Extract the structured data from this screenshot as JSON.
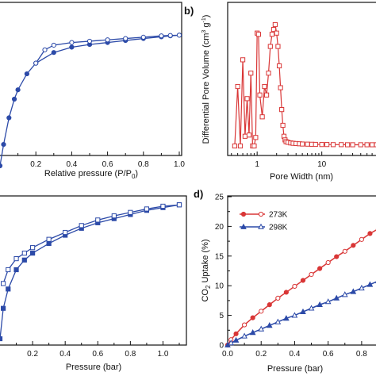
{
  "chart_data": [
    {
      "panel": "a",
      "type": "line",
      "xlabel": "Relative pressure (P/P0)",
      "xlabel_main": "Relative pressure (P/P",
      "xlabel_sub": "0",
      "xlabel_tail": ")",
      "xlim": [
        0.0,
        1.0
      ],
      "xticks": [
        "0.2",
        "0.4",
        "0.6",
        "0.8",
        "1.0"
      ],
      "series": [
        {
          "role": "adsorption",
          "marker": "filled-circle",
          "x": [
            0.0,
            0.02,
            0.05,
            0.08,
            0.1,
            0.15,
            0.2,
            0.3,
            0.4,
            0.5,
            0.6,
            0.7,
            0.8,
            0.9,
            0.95,
            1.0
          ],
          "y": [
            0.0,
            0.16,
            0.36,
            0.5,
            0.57,
            0.69,
            0.77,
            0.85,
            0.89,
            0.91,
            0.925,
            0.94,
            0.955,
            0.968,
            0.975,
            0.98
          ]
        },
        {
          "role": "desorption",
          "marker": "open-circle",
          "x": [
            1.0,
            0.95,
            0.9,
            0.8,
            0.7,
            0.6,
            0.5,
            0.4,
            0.3,
            0.25,
            0.2
          ],
          "y": [
            0.98,
            0.978,
            0.975,
            0.965,
            0.955,
            0.945,
            0.935,
            0.925,
            0.905,
            0.87,
            0.77
          ]
        }
      ],
      "color": "#2c4aa8"
    },
    {
      "panel": "b",
      "label": "b)",
      "type": "line",
      "xscale": "log",
      "xlabel": "Pore Width (nm)",
      "ylabel": "Differential Pore Volume (cm3 g-1)",
      "ylabel_main": "Differential Pore Volume (cm",
      "ylabel_sup1": "3",
      "ylabel_mid": " g",
      "ylabel_sup2": "-1",
      "ylabel_tail": ")",
      "xticks": [
        "1",
        "10"
      ],
      "marker": "open-square",
      "color": "#d93636",
      "x": [
        0.45,
        0.5,
        0.55,
        0.6,
        0.65,
        0.7,
        0.75,
        0.8,
        0.85,
        0.9,
        0.95,
        1.0,
        1.05,
        1.1,
        1.2,
        1.3,
        1.4,
        1.5,
        1.6,
        1.7,
        1.8,
        1.9,
        2.0,
        2.1,
        2.2,
        2.3,
        2.4,
        2.5,
        2.6,
        2.7,
        2.8,
        3.0,
        3.3,
        3.6,
        4.0,
        4.5,
        5,
        6,
        7,
        8,
        10,
        12,
        15,
        20,
        25,
        30,
        40,
        50,
        60,
        70
      ],
      "y": [
        0.0,
        0.49,
        0.0,
        0.71,
        0.08,
        0.39,
        0.09,
        0.6,
        0.0,
        0.0,
        0.07,
        0.93,
        0.92,
        0.42,
        0.24,
        0.49,
        0.42,
        0.6,
        0.82,
        0.92,
        0.96,
        1.0,
        0.93,
        0.82,
        0.66,
        0.48,
        0.3,
        0.17,
        0.08,
        0.05,
        0.035,
        0.03,
        0.025,
        0.022,
        0.02,
        0.018,
        0.016,
        0.015,
        0.014,
        0.013,
        0.012,
        0.012,
        0.011,
        0.011,
        0.01,
        0.01,
        0.01,
        0.01,
        0.01,
        0.01
      ]
    },
    {
      "panel": "c",
      "type": "line",
      "xlabel": "Pressure (bar)",
      "xlim": [
        0.0,
        1.1
      ],
      "xticks": [
        "0.2",
        "0.4",
        "0.6",
        "0.8",
        "1.0"
      ],
      "color": "#2c4aa8",
      "series": [
        {
          "role": "filled",
          "marker": "filled-square",
          "x": [
            0.0,
            0.02,
            0.05,
            0.1,
            0.15,
            0.2,
            0.3,
            0.4,
            0.5,
            0.6,
            0.7,
            0.8,
            0.9,
            1.0,
            1.1
          ],
          "y": [
            0.0,
            0.22,
            0.36,
            0.5,
            0.57,
            0.62,
            0.69,
            0.75,
            0.8,
            0.84,
            0.87,
            0.9,
            0.93,
            0.95,
            0.97
          ]
        },
        {
          "role": "open",
          "marker": "open-square",
          "x": [
            1.1,
            1.0,
            0.9,
            0.8,
            0.7,
            0.6,
            0.5,
            0.4,
            0.3,
            0.2,
            0.15,
            0.1,
            0.05,
            0.02
          ],
          "y": [
            0.97,
            0.96,
            0.94,
            0.915,
            0.89,
            0.86,
            0.82,
            0.77,
            0.72,
            0.66,
            0.62,
            0.58,
            0.5,
            0.4
          ]
        }
      ]
    },
    {
      "panel": "d",
      "label": "d)",
      "type": "line",
      "xlabel": "Pressure (bar)",
      "ylabel": "CO2 Uptake (%)",
      "ylabel_main": "CO",
      "ylabel_sub": "2",
      "ylabel_tail": " Uptake (%)",
      "xlim": [
        0.0,
        0.9
      ],
      "ylim": [
        0,
        25
      ],
      "xticks": [
        "0.0",
        "0.2",
        "0.4",
        "0.6",
        "0.8"
      ],
      "yticks": [
        "0",
        "5",
        "10",
        "15",
        "20",
        "25"
      ],
      "series": [
        {
          "name": "273K",
          "color": "#d93636",
          "marker": "circle",
          "x": [
            0.0,
            0.02,
            0.05,
            0.1,
            0.15,
            0.2,
            0.25,
            0.3,
            0.35,
            0.4,
            0.45,
            0.5,
            0.55,
            0.6,
            0.65,
            0.7,
            0.75,
            0.8,
            0.85,
            0.9
          ],
          "y": [
            0.0,
            0.9,
            1.9,
            3.4,
            4.6,
            5.7,
            6.8,
            7.9,
            8.9,
            9.9,
            10.9,
            11.9,
            12.9,
            13.9,
            14.9,
            15.8,
            16.8,
            17.8,
            18.8,
            19.6
          ]
        },
        {
          "name": "298K",
          "color": "#2c4aa8",
          "marker": "triangle",
          "x": [
            0.0,
            0.02,
            0.05,
            0.1,
            0.15,
            0.2,
            0.25,
            0.3,
            0.35,
            0.4,
            0.45,
            0.5,
            0.55,
            0.6,
            0.65,
            0.7,
            0.75,
            0.8,
            0.85,
            0.9
          ],
          "y": [
            0.0,
            0.35,
            0.8,
            1.5,
            2.1,
            2.7,
            3.3,
            3.9,
            4.5,
            5.0,
            5.6,
            6.2,
            6.8,
            7.3,
            7.9,
            8.5,
            9.0,
            9.6,
            10.2,
            10.8
          ]
        }
      ]
    }
  ]
}
